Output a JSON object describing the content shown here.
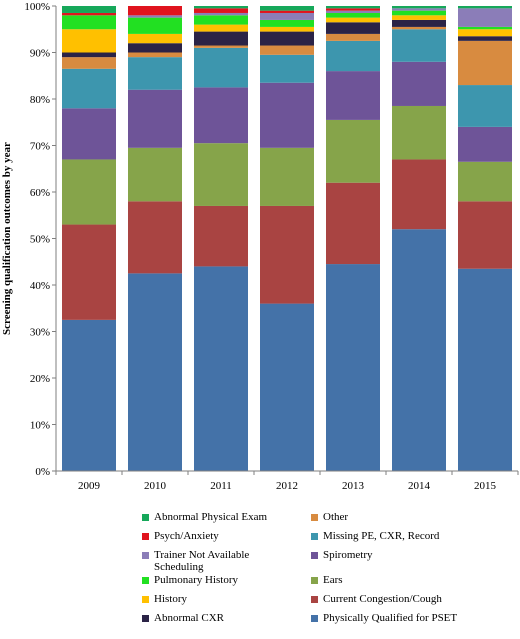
{
  "chart_data": {
    "type": "bar",
    "stacked": true,
    "normalized": true,
    "title": "",
    "xlabel": "",
    "ylabel": "Screening qualification  outcomes by year",
    "categories": [
      "2009",
      "2010",
      "2011",
      "2012",
      "2013",
      "2014",
      "2015"
    ],
    "ylim": [
      0,
      100
    ],
    "yticks": [
      "0%",
      "10%",
      "20%",
      "30%",
      "40%",
      "50%",
      "60%",
      "70%",
      "80%",
      "90%",
      "100%"
    ],
    "grid": false,
    "legend_position": "bottom",
    "series": [
      {
        "name": "Physically Qualified for PSET",
        "color": "#4472a8",
        "values": [
          32.5,
          42.5,
          44.0,
          36.0,
          44.5,
          52.0,
          43.5
        ]
      },
      {
        "name": "Current Congestion/Cough",
        "color": "#a94442",
        "values": [
          20.5,
          15.5,
          13.0,
          21.0,
          17.5,
          15.0,
          14.5
        ]
      },
      {
        "name": "Ears",
        "color": "#86a44a",
        "values": [
          14.0,
          11.5,
          13.5,
          12.5,
          13.5,
          11.5,
          8.5
        ]
      },
      {
        "name": "Spirometry",
        "color": "#6e5498",
        "values": [
          11.0,
          12.5,
          12.0,
          14.0,
          10.5,
          9.5,
          7.5
        ]
      },
      {
        "name": "Missing PE, CXR, Record",
        "color": "#3d96ae",
        "values": [
          8.5,
          7.0,
          8.5,
          6.0,
          6.5,
          7.0,
          9.0
        ]
      },
      {
        "name": "Other",
        "color": "#d88b40",
        "values": [
          2.5,
          1.0,
          0.5,
          2.0,
          1.5,
          0.5,
          9.5
        ]
      },
      {
        "name": "Abnormal CXR",
        "color": "#2b2346",
        "values": [
          1.0,
          2.0,
          3.0,
          3.0,
          2.5,
          1.5,
          1.0
        ]
      },
      {
        "name": "History",
        "color": "#ffc000",
        "values": [
          5.0,
          2.0,
          1.5,
          1.0,
          1.0,
          1.0,
          1.5
        ]
      },
      {
        "name": "Pulmonary History",
        "color": "#22e022",
        "values": [
          3.0,
          3.5,
          2.0,
          1.5,
          1.0,
          1.0,
          0.5
        ]
      },
      {
        "name": "Trainer Not Available Scheduling",
        "color": "#8b7db8",
        "values": [
          0.0,
          0.5,
          0.5,
          1.5,
          0.5,
          0.5,
          4.0
        ]
      },
      {
        "name": "Psych/Anxiety",
        "color": "#e0141e",
        "values": [
          0.5,
          2.0,
          1.0,
          0.5,
          0.5,
          0.0,
          0.0
        ]
      },
      {
        "name": "Abnormal Physical Exam",
        "color": "#16a85a",
        "values": [
          1.5,
          0.0,
          0.5,
          1.0,
          0.5,
          0.5,
          0.5
        ]
      }
    ],
    "legend": [
      {
        "label": "Abnormal Physical Exam",
        "color": "#16a85a",
        "col": 0,
        "row": 0
      },
      {
        "label": "Other",
        "color": "#d88b40",
        "col": 1,
        "row": 0
      },
      {
        "label": "Psych/Anxiety",
        "color": "#e0141e",
        "col": 0,
        "row": 1
      },
      {
        "label": "Missing PE, CXR, Record",
        "color": "#3d96ae",
        "col": 1,
        "row": 1
      },
      {
        "label": "Trainer Not Available\nScheduling",
        "color": "#8b7db8",
        "col": 0,
        "row": 2
      },
      {
        "label": "Spirometry",
        "color": "#6e5498",
        "col": 1,
        "row": 2
      },
      {
        "label": "Pulmonary History",
        "color": "#22e022",
        "col": 0,
        "row": 3
      },
      {
        "label": "Ears",
        "color": "#86a44a",
        "col": 1,
        "row": 3
      },
      {
        "label": "History",
        "color": "#ffc000",
        "col": 0,
        "row": 4
      },
      {
        "label": "Current Congestion/Cough",
        "color": "#a94442",
        "col": 1,
        "row": 4
      },
      {
        "label": "Abnormal CXR",
        "color": "#2b2346",
        "col": 0,
        "row": 5
      },
      {
        "label": "Physically Qualified for PSET",
        "color": "#4472a8",
        "col": 1,
        "row": 5
      }
    ]
  }
}
